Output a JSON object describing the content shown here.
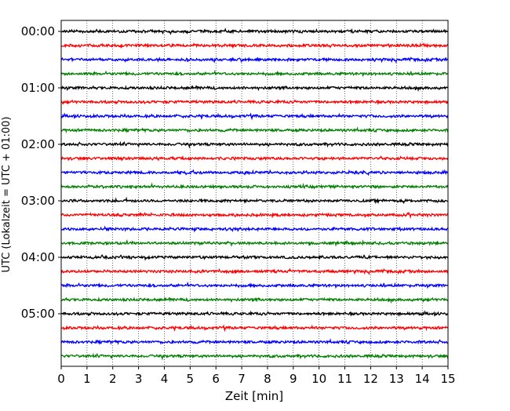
{
  "chart_data": {
    "type": "line",
    "title": "",
    "xlabel": "Zeit  [min]",
    "ylabel": "UTC (Lokalzeit = UTC + 01:00)",
    "xlim": [
      0,
      15
    ],
    "x_ticks": [
      "0",
      "1",
      "2",
      "3",
      "4",
      "5",
      "6",
      "7",
      "8",
      "9",
      "10",
      "11",
      "12",
      "13",
      "14",
      "15"
    ],
    "y_tick_labels": [
      "00:00",
      "01:00",
      "02:00",
      "03:00",
      "04:00",
      "05:00"
    ],
    "grid": "vertical dotted",
    "trace_interval_minutes": 15,
    "trace_colors": [
      "#000000",
      "#ff0000",
      "#0000ff",
      "#008000"
    ],
    "series": [
      {
        "start": "00:00"
      },
      {
        "start": "00:15"
      },
      {
        "start": "00:30"
      },
      {
        "start": "00:45"
      },
      {
        "start": "01:00"
      },
      {
        "start": "01:15"
      },
      {
        "start": "01:30"
      },
      {
        "start": "01:45"
      },
      {
        "start": "02:00"
      },
      {
        "start": "02:15"
      },
      {
        "start": "02:30"
      },
      {
        "start": "02:45"
      },
      {
        "start": "03:00"
      },
      {
        "start": "03:15"
      },
      {
        "start": "03:30"
      },
      {
        "start": "03:45"
      },
      {
        "start": "04:00"
      },
      {
        "start": "04:15"
      },
      {
        "start": "04:30"
      },
      {
        "start": "04:45"
      },
      {
        "start": "05:00"
      },
      {
        "start": "05:15"
      },
      {
        "start": "05:30"
      },
      {
        "start": "05:45"
      }
    ]
  }
}
